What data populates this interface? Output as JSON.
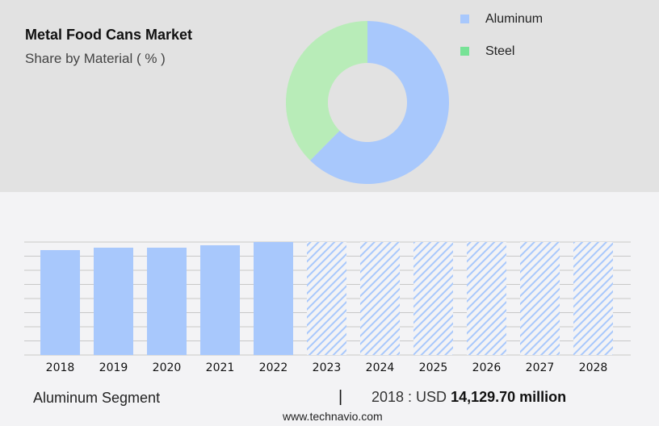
{
  "title": "Metal Food Cans Market",
  "subtitle": "Share by Material ( % )",
  "colors": {
    "aluminum": "#a8c8fc",
    "steel": "#b8ecb8",
    "steel_legend": "#77e296",
    "hatch": "#a8c8fc",
    "grid": "#c8c8c8"
  },
  "chart_data": [
    {
      "type": "pie",
      "donut": true,
      "legend_position": "top-right",
      "legend": [
        "Aluminum",
        "Steel"
      ],
      "slices": [
        {
          "name": "Aluminum",
          "value": 62.4
        },
        {
          "name": "Steel",
          "value": 37.6
        }
      ]
    },
    {
      "type": "bar",
      "grid": true,
      "categories": [
        "2018",
        "2019",
        "2020",
        "2021",
        "2022",
        "2023",
        "2024",
        "2025",
        "2026",
        "2027",
        "2028"
      ],
      "values": [
        14129.7,
        14455,
        14455,
        14780,
        15215,
        null,
        null,
        null,
        null,
        null,
        null
      ],
      "forecast": [
        "2023",
        "2024",
        "2025",
        "2026",
        "2027",
        "2028"
      ],
      "unit": "USD million"
    }
  ],
  "footer": {
    "segment": "Aluminum Segment",
    "separator": "|",
    "year_label": "2018 : USD",
    "value": "14,129.70 million",
    "site": "www.technavio.com"
  }
}
